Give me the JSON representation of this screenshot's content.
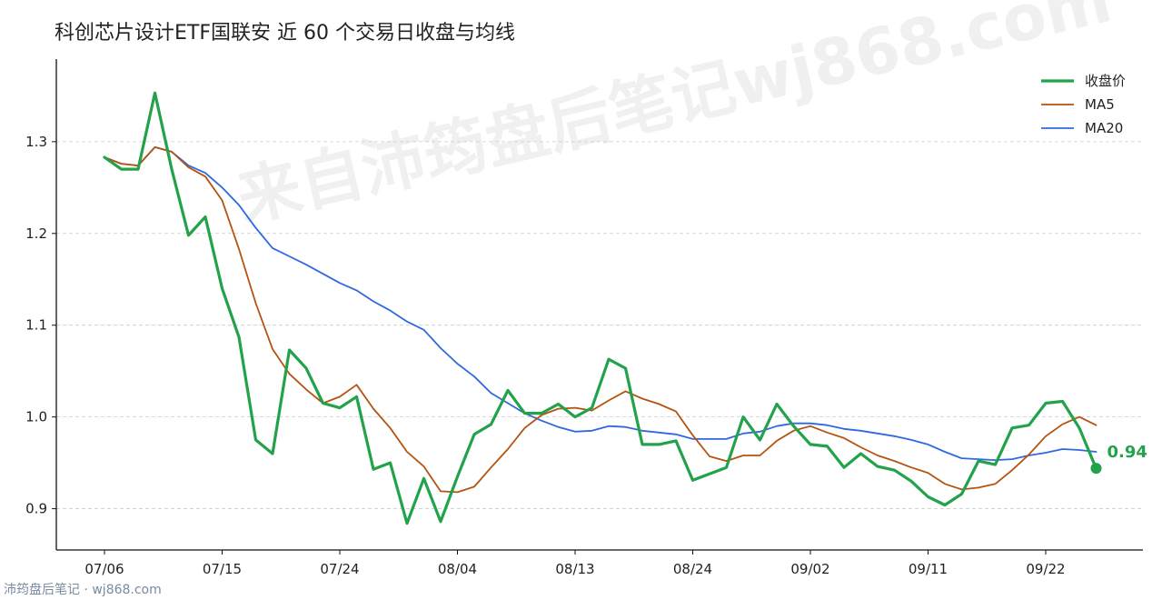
{
  "title": "科创芯片设计ETF国联安 近 60 个交易日收盘与均线",
  "watermark": "来自沛筠盘后笔记wj868.com",
  "footer": "沛筠盘后笔记 · wj868.com",
  "colors": {
    "close": "#22a24a",
    "ma5": "#b5530f",
    "ma20": "#2f68e0",
    "axis": "#111111",
    "grid": "#cccccc"
  },
  "chart_data": {
    "type": "line",
    "x_ticks": [
      "07/06",
      "07/15",
      "07/24",
      "08/04",
      "08/13",
      "08/24",
      "09/02",
      "09/11",
      "09/22"
    ],
    "x_tick_index": [
      0,
      7,
      14,
      21,
      28,
      35,
      42,
      49,
      56
    ],
    "ylim": [
      0.855,
      1.39
    ],
    "y_ticks": [
      "0.9",
      "1.0",
      "1.1",
      "1.2",
      "1.3"
    ],
    "y_tick_values": [
      0.9,
      1.0,
      1.1,
      1.2,
      1.3
    ],
    "grid_y": true,
    "legend_position": "top-right",
    "last_label": "0.94",
    "series": [
      {
        "name": "收盘价",
        "key": "close",
        "values": [
          1.283,
          1.27,
          1.27,
          1.353,
          1.27,
          1.198,
          1.218,
          1.14,
          1.087,
          0.975,
          0.96,
          1.073,
          1.053,
          1.015,
          1.01,
          1.022,
          0.943,
          0.95,
          0.884,
          0.933,
          0.886,
          0.935,
          0.981,
          0.992,
          1.029,
          1.004,
          1.004,
          1.014,
          1.0,
          1.01,
          1.063,
          1.053,
          0.97,
          0.97,
          0.974,
          0.931,
          0.938,
          0.945,
          1.0,
          0.975,
          1.014,
          0.99,
          0.97,
          0.968,
          0.945,
          0.96,
          0.946,
          0.942,
          0.93,
          0.913,
          0.904,
          0.916,
          0.952,
          0.948,
          0.988,
          0.991,
          1.015,
          1.017,
          0.988,
          0.944
        ]
      },
      {
        "name": "MA5",
        "key": "ma5",
        "values": [
          1.283,
          1.276,
          1.274,
          1.294,
          1.289,
          1.272,
          1.262,
          1.236,
          1.183,
          1.124,
          1.074,
          1.047,
          1.03,
          1.015,
          1.022,
          1.035,
          1.009,
          0.988,
          0.962,
          0.946,
          0.919,
          0.918,
          0.924,
          0.945,
          0.965,
          0.988,
          1.002,
          1.009,
          1.01,
          1.007,
          1.018,
          1.028,
          1.02,
          1.014,
          1.006,
          0.98,
          0.957,
          0.952,
          0.958,
          0.958,
          0.974,
          0.985,
          0.99,
          0.983,
          0.977,
          0.967,
          0.958,
          0.952,
          0.945,
          0.939,
          0.927,
          0.921,
          0.923,
          0.927,
          0.942,
          0.959,
          0.979,
          0.992,
          1.0,
          0.991
        ]
      },
      {
        "name": "MA20",
        "key": "ma20",
        "values": [
          1.283,
          1.276,
          1.274,
          1.294,
          1.289,
          1.274,
          1.266,
          1.25,
          1.231,
          1.206,
          1.184,
          1.175,
          1.166,
          1.156,
          1.146,
          1.138,
          1.126,
          1.116,
          1.104,
          1.095,
          1.075,
          1.058,
          1.044,
          1.026,
          1.015,
          1.004,
          0.996,
          0.989,
          0.984,
          0.985,
          0.99,
          0.989,
          0.985,
          0.983,
          0.981,
          0.976,
          0.976,
          0.976,
          0.982,
          0.984,
          0.99,
          0.993,
          0.993,
          0.991,
          0.987,
          0.985,
          0.982,
          0.979,
          0.975,
          0.97,
          0.962,
          0.955,
          0.954,
          0.953,
          0.954,
          0.958,
          0.961,
          0.965,
          0.964,
          0.962
        ]
      }
    ]
  },
  "legend": [
    {
      "label": "收盘价",
      "key": "close"
    },
    {
      "label": "MA5",
      "key": "ma5"
    },
    {
      "label": "MA20",
      "key": "ma20"
    }
  ]
}
